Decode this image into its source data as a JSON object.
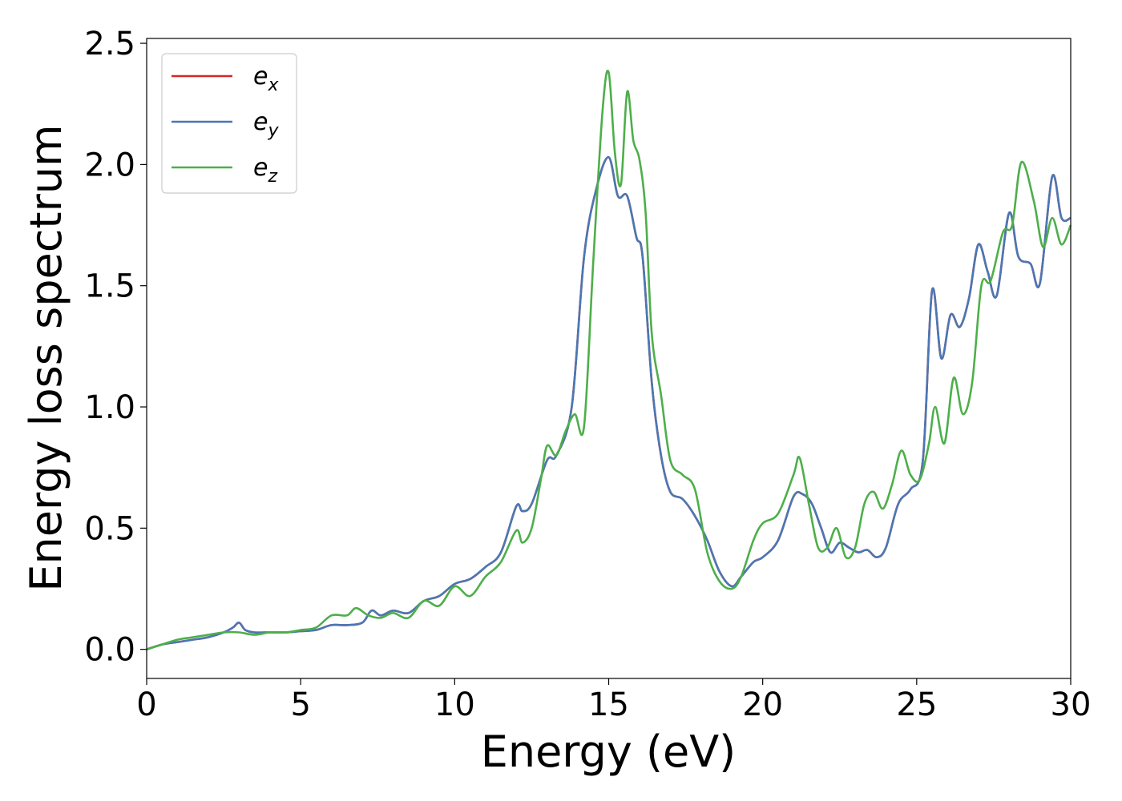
{
  "chart_data": {
    "type": "line",
    "xlabel": "Energy (eV)",
    "ylabel": "Energy loss spectrum",
    "xlim": [
      0,
      30
    ],
    "ylim": [
      -0.12,
      2.52
    ],
    "x_ticks": [
      0,
      5,
      10,
      15,
      20,
      25,
      30
    ],
    "x_tick_labels": [
      "0",
      "5",
      "10",
      "15",
      "20",
      "25",
      "30"
    ],
    "y_ticks": [
      0.0,
      0.5,
      1.0,
      1.5,
      2.0,
      2.5
    ],
    "y_tick_labels": [
      "0.0",
      "0.5",
      "1.0",
      "1.5",
      "2.0",
      "2.5"
    ],
    "grid": false,
    "legend_position": "top-left",
    "series": [
      {
        "name": "e",
        "subscript": "x",
        "color": "#d62728",
        "x": [
          0,
          0.5,
          1.0,
          1.5,
          2.0,
          2.5,
          2.8,
          3.0,
          3.2,
          3.5,
          4.0,
          4.5,
          5.0,
          5.5,
          6.0,
          6.5,
          7.0,
          7.3,
          7.6,
          8.0,
          8.5,
          9.0,
          9.5,
          10.0,
          10.5,
          11.0,
          11.5,
          12.0,
          12.2,
          12.5,
          13.0,
          13.3,
          13.8,
          14.2,
          14.6,
          15.0,
          15.3,
          15.6,
          15.9,
          16.1,
          16.4,
          16.7,
          17.0,
          17.4,
          17.8,
          18.2,
          18.6,
          19.0,
          19.3,
          19.7,
          20.0,
          20.5,
          21.0,
          21.3,
          21.6,
          21.9,
          22.2,
          22.5,
          22.8,
          23.1,
          23.4,
          23.7,
          24.0,
          24.4,
          24.8,
          25.2,
          25.5,
          25.8,
          26.1,
          26.4,
          26.7,
          27.0,
          27.3,
          27.6,
          28.0,
          28.3,
          28.7,
          29.0,
          29.4,
          29.7,
          30.0
        ],
        "y": [
          0.0,
          0.02,
          0.03,
          0.04,
          0.05,
          0.07,
          0.09,
          0.11,
          0.08,
          0.07,
          0.07,
          0.07,
          0.075,
          0.08,
          0.1,
          0.1,
          0.11,
          0.16,
          0.14,
          0.16,
          0.15,
          0.2,
          0.22,
          0.27,
          0.29,
          0.34,
          0.4,
          0.59,
          0.57,
          0.6,
          0.78,
          0.8,
          1.0,
          1.62,
          1.9,
          2.03,
          1.87,
          1.87,
          1.7,
          1.62,
          1.1,
          0.8,
          0.65,
          0.62,
          0.55,
          0.45,
          0.32,
          0.26,
          0.3,
          0.36,
          0.38,
          0.45,
          0.63,
          0.64,
          0.6,
          0.5,
          0.4,
          0.44,
          0.42,
          0.4,
          0.41,
          0.38,
          0.42,
          0.6,
          0.66,
          0.78,
          1.48,
          1.2,
          1.38,
          1.33,
          1.45,
          1.67,
          1.56,
          1.46,
          1.8,
          1.62,
          1.59,
          1.51,
          1.95,
          1.78,
          1.78
        ]
      },
      {
        "name": "e",
        "subscript": "y",
        "color": "#4a77b4",
        "x": [
          0,
          0.5,
          1.0,
          1.5,
          2.0,
          2.5,
          2.8,
          3.0,
          3.2,
          3.5,
          4.0,
          4.5,
          5.0,
          5.5,
          6.0,
          6.5,
          7.0,
          7.3,
          7.6,
          8.0,
          8.5,
          9.0,
          9.5,
          10.0,
          10.5,
          11.0,
          11.5,
          12.0,
          12.2,
          12.5,
          13.0,
          13.3,
          13.8,
          14.2,
          14.6,
          15.0,
          15.3,
          15.6,
          15.9,
          16.1,
          16.4,
          16.7,
          17.0,
          17.4,
          17.8,
          18.2,
          18.6,
          19.0,
          19.3,
          19.7,
          20.0,
          20.5,
          21.0,
          21.3,
          21.6,
          21.9,
          22.2,
          22.5,
          22.8,
          23.1,
          23.4,
          23.7,
          24.0,
          24.4,
          24.8,
          25.2,
          25.5,
          25.8,
          26.1,
          26.4,
          26.7,
          27.0,
          27.3,
          27.6,
          28.0,
          28.3,
          28.7,
          29.0,
          29.4,
          29.7,
          30.0
        ],
        "y": [
          0.0,
          0.02,
          0.03,
          0.04,
          0.05,
          0.07,
          0.09,
          0.11,
          0.08,
          0.07,
          0.07,
          0.07,
          0.075,
          0.08,
          0.1,
          0.1,
          0.11,
          0.16,
          0.14,
          0.16,
          0.15,
          0.2,
          0.22,
          0.27,
          0.29,
          0.34,
          0.4,
          0.59,
          0.57,
          0.6,
          0.78,
          0.8,
          1.0,
          1.62,
          1.9,
          2.03,
          1.87,
          1.87,
          1.7,
          1.62,
          1.1,
          0.8,
          0.65,
          0.62,
          0.55,
          0.45,
          0.32,
          0.26,
          0.3,
          0.36,
          0.38,
          0.45,
          0.63,
          0.64,
          0.6,
          0.5,
          0.4,
          0.44,
          0.42,
          0.4,
          0.41,
          0.38,
          0.42,
          0.6,
          0.66,
          0.78,
          1.48,
          1.2,
          1.38,
          1.33,
          1.45,
          1.67,
          1.56,
          1.46,
          1.8,
          1.62,
          1.59,
          1.51,
          1.95,
          1.78,
          1.78
        ]
      },
      {
        "name": "e",
        "subscript": "z",
        "color": "#4daf4a",
        "x": [
          0,
          0.5,
          1.0,
          1.5,
          2.0,
          2.5,
          3.0,
          3.5,
          4.0,
          4.5,
          5.0,
          5.5,
          6.0,
          6.5,
          6.8,
          7.2,
          7.6,
          8.0,
          8.5,
          9.0,
          9.5,
          10.0,
          10.5,
          11.0,
          11.5,
          12.0,
          12.2,
          12.5,
          12.8,
          13.0,
          13.3,
          13.6,
          13.9,
          14.2,
          14.5,
          14.8,
          15.0,
          15.2,
          15.4,
          15.6,
          15.8,
          16.0,
          16.2,
          16.4,
          16.7,
          17.0,
          17.4,
          17.8,
          18.2,
          18.6,
          19.0,
          19.3,
          19.7,
          20.0,
          20.5,
          21.0,
          21.2,
          21.5,
          21.8,
          22.1,
          22.4,
          22.7,
          23.0,
          23.3,
          23.6,
          23.9,
          24.2,
          24.5,
          24.8,
          25.1,
          25.4,
          25.6,
          25.9,
          26.2,
          26.5,
          26.8,
          27.1,
          27.4,
          27.8,
          28.1,
          28.4,
          28.8,
          29.1,
          29.4,
          29.7,
          30.0
        ],
        "y": [
          0.0,
          0.02,
          0.04,
          0.05,
          0.06,
          0.07,
          0.07,
          0.06,
          0.07,
          0.07,
          0.08,
          0.09,
          0.14,
          0.14,
          0.17,
          0.14,
          0.13,
          0.15,
          0.13,
          0.2,
          0.18,
          0.26,
          0.22,
          0.3,
          0.36,
          0.49,
          0.44,
          0.5,
          0.7,
          0.84,
          0.8,
          0.9,
          0.97,
          0.92,
          1.6,
          2.22,
          2.38,
          2.05,
          1.92,
          2.3,
          2.1,
          2.02,
          1.8,
          1.3,
          1.05,
          0.78,
          0.72,
          0.66,
          0.4,
          0.28,
          0.25,
          0.3,
          0.45,
          0.52,
          0.56,
          0.72,
          0.79,
          0.6,
          0.42,
          0.42,
          0.5,
          0.38,
          0.42,
          0.6,
          0.65,
          0.58,
          0.68,
          0.82,
          0.72,
          0.7,
          0.85,
          1.0,
          0.85,
          1.12,
          0.97,
          1.1,
          1.5,
          1.52,
          1.72,
          1.75,
          2.01,
          1.85,
          1.66,
          1.78,
          1.67,
          1.75
        ]
      }
    ]
  }
}
